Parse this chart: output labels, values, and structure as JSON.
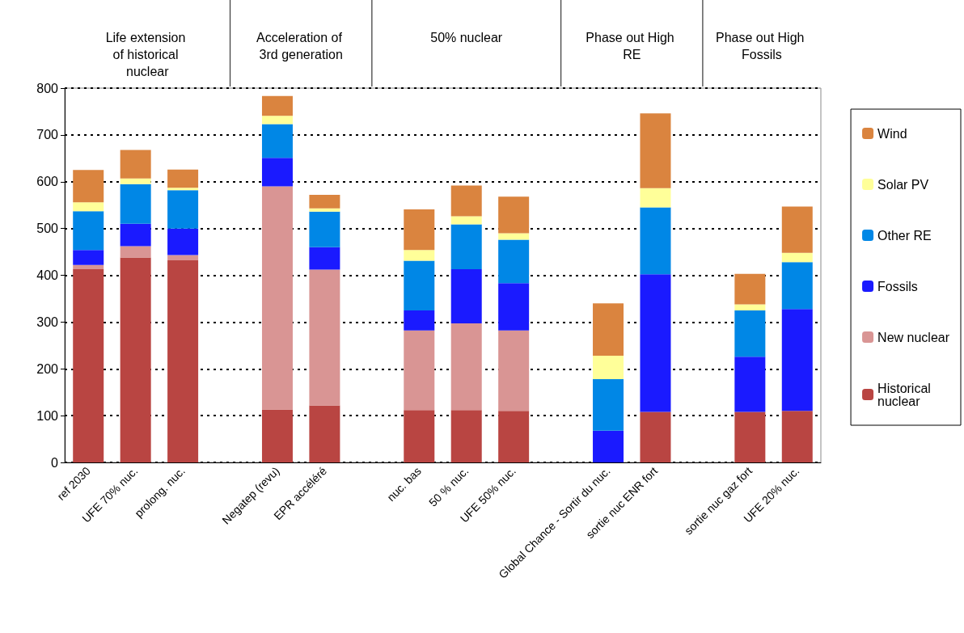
{
  "chart_data": {
    "type": "bar",
    "stacked": true,
    "categories": [
      "ref 2030",
      "UFE 70% nuc.",
      "prolong. nuc.",
      null,
      "Negatep (revu)",
      "EPR accéléré",
      null,
      "nuc. bas",
      "50 % nuc.",
      "UFE 50% nuc.",
      null,
      "Global Chance - Sortir du nuc.",
      "sortie nuc ENR fort",
      null,
      "sortie nuc gaz fort",
      "UFE 20% nuc."
    ],
    "series": [
      {
        "name": "Historical nuclear",
        "color": "#b94542",
        "values": [
          413,
          438,
          432,
          null,
          113,
          122,
          null,
          112,
          112,
          110,
          null,
          0,
          108,
          null,
          108,
          110
        ]
      },
      {
        "name": "New nuclear",
        "color": "#d99594",
        "values": [
          9,
          24,
          11,
          null,
          477,
          290,
          null,
          170,
          185,
          172,
          null,
          0,
          0,
          null,
          0,
          0
        ]
      },
      {
        "name": "Fossils",
        "color": "#1a1aff",
        "values": [
          32,
          48,
          57,
          null,
          61,
          48,
          null,
          43,
          116,
          101,
          null,
          68,
          294,
          null,
          118,
          218
        ]
      },
      {
        "name": "Other RE",
        "color": "#0087e6",
        "values": [
          83,
          85,
          82,
          null,
          72,
          76,
          null,
          106,
          96,
          93,
          null,
          110,
          143,
          null,
          99,
          100
        ]
      },
      {
        "name": "Solar PV",
        "color": "#ffff99",
        "values": [
          19,
          12,
          5,
          null,
          18,
          7,
          null,
          23,
          17,
          14,
          null,
          50,
          41,
          null,
          13,
          20
        ]
      },
      {
        "name": "Wind",
        "color": "#da843f",
        "values": [
          69,
          61,
          39,
          null,
          42,
          29,
          null,
          87,
          66,
          78,
          null,
          112,
          160,
          null,
          65,
          99
        ]
      }
    ],
    "ylim": [
      0,
      800
    ],
    "yticks": [
      0,
      100,
      200,
      300,
      400,
      500,
      600,
      700,
      800
    ],
    "grid": "y",
    "legend": "right",
    "annotations": [
      "Life extension of historical nuclear",
      "Acceleration of 3rd generation",
      "50% nuclear",
      "Phase out High RE",
      "Phase out High Fossils"
    ]
  }
}
